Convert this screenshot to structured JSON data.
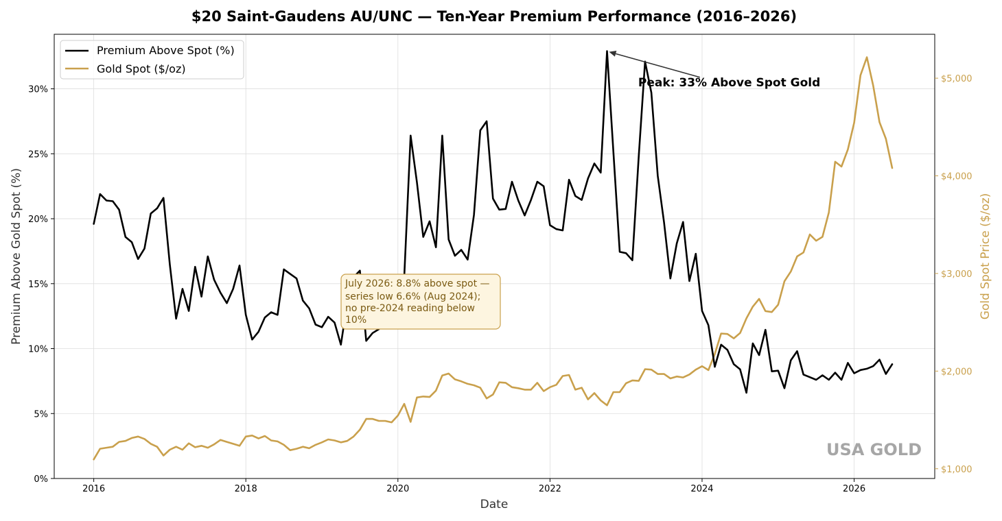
{
  "chart_data": {
    "type": "line",
    "title": "$20 Saint-Gaudens AU/UNC — Ten-Year Premium Performance (2016–2026)",
    "xlabel": "Date",
    "ylabel_left": "Premium Above Gold Spot (%)",
    "ylabel_right": "Gold Spot Price ($/oz)",
    "x_ticks": [
      "2016",
      "2018",
      "2020",
      "2022",
      "2024",
      "2026"
    ],
    "x_tick_values": [
      2016,
      2018,
      2020,
      2022,
      2024,
      2026
    ],
    "xlim": [
      2015.48,
      2027.06
    ],
    "ylim_left": [
      0,
      34.2
    ],
    "ylim_right": [
      900,
      5450
    ],
    "y_ticks_left": [
      {
        "v": 0,
        "label": "0%"
      },
      {
        "v": 5,
        "label": "5%"
      },
      {
        "v": 10,
        "label": "10%"
      },
      {
        "v": 15,
        "label": "15%"
      },
      {
        "v": 20,
        "label": "20%"
      },
      {
        "v": 25,
        "label": "25%"
      },
      {
        "v": 30,
        "label": "30%"
      }
    ],
    "y_ticks_right": [
      {
        "v": 1000,
        "label": "$1,000"
      },
      {
        "v": 2000,
        "label": "$2,000"
      },
      {
        "v": 3000,
        "label": "$3,000"
      },
      {
        "v": 4000,
        "label": "$4,000"
      },
      {
        "v": 5000,
        "label": "$5,000"
      }
    ],
    "grid": true,
    "legend_position": "top-left",
    "colors": {
      "premium": "#000000",
      "gold": "#c9a04c",
      "box_border": "#c9a04c",
      "box_fill": "#fdf5e0",
      "watermark": "#a6a6a6"
    },
    "series": [
      {
        "name": "Premium Above Spot (%)",
        "axis": "left",
        "x": [
          2016.0,
          2016.083,
          2016.167,
          2016.25,
          2016.333,
          2016.417,
          2016.5,
          2016.583,
          2016.667,
          2016.75,
          2016.833,
          2016.917,
          2017.0,
          2017.083,
          2017.167,
          2017.25,
          2017.333,
          2017.417,
          2017.5,
          2017.583,
          2017.667,
          2017.75,
          2017.833,
          2017.917,
          2018.0,
          2018.083,
          2018.167,
          2018.25,
          2018.333,
          2018.417,
          2018.5,
          2018.583,
          2018.667,
          2018.75,
          2018.833,
          2018.917,
          2019.0,
          2019.083,
          2019.167,
          2019.25,
          2019.333,
          2019.417,
          2019.5,
          2019.583,
          2019.667,
          2019.75,
          2019.833,
          2019.917,
          2020.0,
          2020.083,
          2020.167,
          2020.25,
          2020.333,
          2020.417,
          2020.5,
          2020.583,
          2020.667,
          2020.75,
          2020.833,
          2020.917,
          2021.0,
          2021.083,
          2021.167,
          2021.25,
          2021.333,
          2021.417,
          2021.5,
          2021.583,
          2021.667,
          2021.75,
          2021.833,
          2021.917,
          2022.0,
          2022.083,
          2022.167,
          2022.25,
          2022.333,
          2022.417,
          2022.5,
          2022.583,
          2022.667,
          2022.75,
          2022.833,
          2022.917,
          2023.0,
          2023.083,
          2023.167,
          2023.25,
          2023.333,
          2023.417,
          2023.5,
          2023.583,
          2023.667,
          2023.75,
          2023.833,
          2023.917,
          2024.0,
          2024.083,
          2024.167,
          2024.25,
          2024.333,
          2024.417,
          2024.5,
          2024.583,
          2024.667,
          2024.75,
          2024.833,
          2024.917,
          2025.0,
          2025.083,
          2025.167,
          2025.25,
          2025.333,
          2025.417,
          2025.5,
          2025.583,
          2025.667,
          2025.75,
          2025.833,
          2025.917,
          2026.0,
          2026.083,
          2026.167,
          2026.25,
          2026.333,
          2026.417,
          2026.5
        ],
        "values": [
          19.6,
          21.9,
          21.4,
          21.35,
          20.7,
          18.6,
          18.2,
          16.9,
          17.7,
          20.4,
          20.8,
          21.6,
          16.5,
          12.3,
          14.6,
          12.9,
          16.3,
          14.0,
          17.1,
          15.3,
          14.3,
          13.5,
          14.6,
          16.4,
          12.6,
          10.7,
          11.3,
          12.4,
          12.8,
          12.6,
          16.1,
          15.75,
          15.4,
          13.7,
          13.1,
          11.85,
          11.65,
          12.45,
          12.0,
          10.3,
          13.5,
          15.5,
          16.0,
          10.6,
          11.2,
          11.5,
          12.0,
          12.5,
          13.2,
          15.5,
          26.4,
          22.8,
          18.6,
          19.8,
          17.8,
          26.4,
          18.4,
          17.15,
          17.6,
          16.85,
          20.3,
          26.8,
          27.5,
          21.55,
          20.7,
          20.75,
          22.85,
          21.4,
          20.25,
          21.45,
          22.85,
          22.5,
          19.5,
          19.2,
          19.1,
          23.0,
          21.75,
          21.45,
          23.1,
          24.25,
          23.55,
          32.9,
          25.2,
          17.45,
          17.35,
          16.8,
          24.8,
          32.1,
          29.7,
          23.3,
          19.7,
          15.4,
          18.1,
          19.75,
          15.2,
          17.3,
          12.9,
          11.8,
          8.6,
          10.3,
          9.9,
          8.8,
          8.4,
          6.6,
          10.4,
          9.5,
          11.45,
          8.25,
          8.3,
          6.95,
          9.1,
          9.8,
          8.0,
          7.8,
          7.6,
          7.95,
          7.6,
          8.15,
          7.6,
          8.9,
          8.1,
          8.35,
          8.45,
          8.65,
          9.15,
          8.05,
          8.8
        ]
      },
      {
        "name": "Gold Spot ($/oz)",
        "axis": "right",
        "x": [
          2016.0,
          2016.083,
          2016.167,
          2016.25,
          2016.333,
          2016.417,
          2016.5,
          2016.583,
          2016.667,
          2016.75,
          2016.833,
          2016.917,
          2017.0,
          2017.083,
          2017.167,
          2017.25,
          2017.333,
          2017.417,
          2017.5,
          2017.583,
          2017.667,
          2017.75,
          2017.833,
          2017.917,
          2018.0,
          2018.083,
          2018.167,
          2018.25,
          2018.333,
          2018.417,
          2018.5,
          2018.583,
          2018.667,
          2018.75,
          2018.833,
          2018.917,
          2019.0,
          2019.083,
          2019.167,
          2019.25,
          2019.333,
          2019.417,
          2019.5,
          2019.583,
          2019.667,
          2019.75,
          2019.833,
          2019.917,
          2020.0,
          2020.083,
          2020.167,
          2020.25,
          2020.333,
          2020.417,
          2020.5,
          2020.583,
          2020.667,
          2020.75,
          2020.833,
          2020.917,
          2021.0,
          2021.083,
          2021.167,
          2021.25,
          2021.333,
          2021.417,
          2021.5,
          2021.583,
          2021.667,
          2021.75,
          2021.833,
          2021.917,
          2022.0,
          2022.083,
          2022.167,
          2022.25,
          2022.333,
          2022.417,
          2022.5,
          2022.583,
          2022.667,
          2022.75,
          2022.833,
          2022.917,
          2023.0,
          2023.083,
          2023.167,
          2023.25,
          2023.333,
          2023.417,
          2023.5,
          2023.583,
          2023.667,
          2023.75,
          2023.833,
          2023.917,
          2024.0,
          2024.083,
          2024.167,
          2024.25,
          2024.333,
          2024.417,
          2024.5,
          2024.583,
          2024.667,
          2024.75,
          2024.833,
          2024.917,
          2025.0,
          2025.083,
          2025.167,
          2025.25,
          2025.333,
          2025.417,
          2025.5,
          2025.583,
          2025.667,
          2025.75,
          2025.833,
          2025.917,
          2026.0,
          2026.083,
          2026.167,
          2026.25,
          2026.333,
          2026.417,
          2026.5
        ],
        "values": [
          1095,
          1205,
          1215,
          1225,
          1275,
          1285,
          1315,
          1330,
          1305,
          1255,
          1225,
          1135,
          1195,
          1225,
          1195,
          1260,
          1220,
          1235,
          1215,
          1250,
          1295,
          1275,
          1255,
          1235,
          1330,
          1340,
          1310,
          1335,
          1290,
          1280,
          1245,
          1190,
          1205,
          1225,
          1210,
          1245,
          1270,
          1300,
          1290,
          1270,
          1285,
          1330,
          1400,
          1510,
          1510,
          1490,
          1490,
          1475,
          1545,
          1665,
          1480,
          1730,
          1740,
          1735,
          1800,
          1955,
          1975,
          1915,
          1895,
          1870,
          1855,
          1830,
          1720,
          1760,
          1885,
          1880,
          1835,
          1825,
          1810,
          1810,
          1880,
          1795,
          1835,
          1860,
          1950,
          1960,
          1810,
          1830,
          1710,
          1775,
          1700,
          1650,
          1785,
          1785,
          1875,
          1905,
          1900,
          2020,
          2015,
          1970,
          1970,
          1925,
          1945,
          1935,
          1965,
          2015,
          2050,
          2010,
          2175,
          2385,
          2380,
          2335,
          2390,
          2540,
          2660,
          2740,
          2615,
          2605,
          2680,
          2920,
          3020,
          3175,
          3215,
          3400,
          3335,
          3375,
          3625,
          4145,
          4095,
          4270,
          4545,
          5030,
          5215,
          4925,
          4550,
          4380,
          4080
        ]
      }
    ],
    "annotations": {
      "peak_label": "Peak: 33% Above Spot Gold",
      "peak_point": {
        "x": 2022.75,
        "y": 32.9
      },
      "peak_text_pos": {
        "x": 2023.16,
        "y": 30.2
      },
      "box_lines": [
        "July 2026: 8.8% above spot —",
        "series low 6.6% (Aug 2024);",
        "no pre-2024 reading below",
        "10%"
      ],
      "watermark": "USA GOLD"
    }
  }
}
